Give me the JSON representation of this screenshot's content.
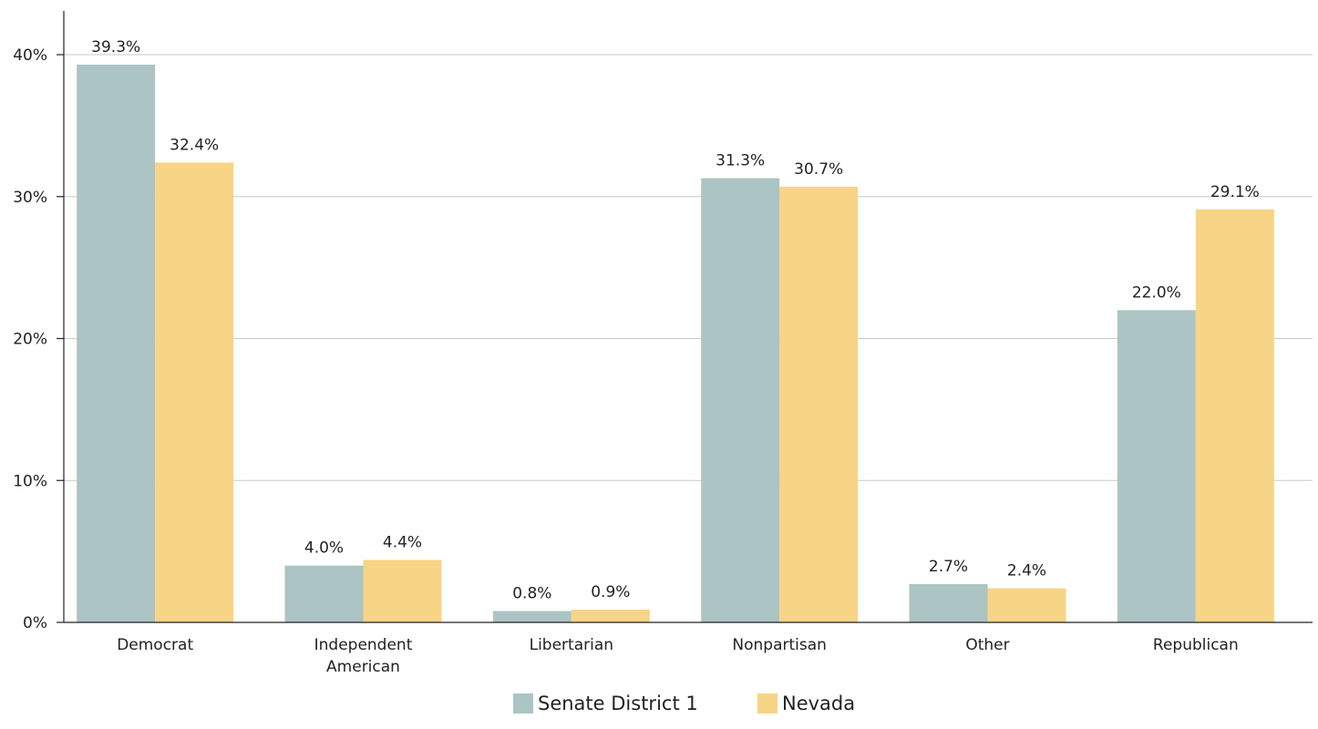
{
  "chart_data": {
    "type": "bar",
    "title": "",
    "xlabel": "",
    "ylabel": "",
    "categories": [
      [
        "Democrat"
      ],
      [
        "Independent",
        "American"
      ],
      [
        "Libertarian"
      ],
      [
        "Nonpartisan"
      ],
      [
        "Other"
      ],
      [
        "Republican"
      ]
    ],
    "series": [
      {
        "name": "Senate District 1",
        "color": "#adc4c4",
        "values": [
          39.3,
          4.0,
          0.8,
          31.3,
          2.7,
          22.0
        ],
        "labels": [
          "39.3%",
          "4.0%",
          "0.8%",
          "31.3%",
          "2.7%",
          "22.0%"
        ]
      },
      {
        "name": "Nevada",
        "color": "#f7d486",
        "values": [
          32.4,
          4.4,
          0.9,
          30.7,
          2.4,
          29.1
        ],
        "labels": [
          "32.4%",
          "4.4%",
          "0.9%",
          "30.7%",
          "2.4%",
          "29.1%"
        ]
      }
    ],
    "ylim": [
      0,
      40
    ],
    "yticks": [
      0,
      10,
      20,
      30,
      40
    ],
    "ytick_labels": [
      "0%",
      "10%",
      "20%",
      "30%",
      "40%"
    ],
    "grid": true,
    "legend_position": "bottom-center"
  }
}
